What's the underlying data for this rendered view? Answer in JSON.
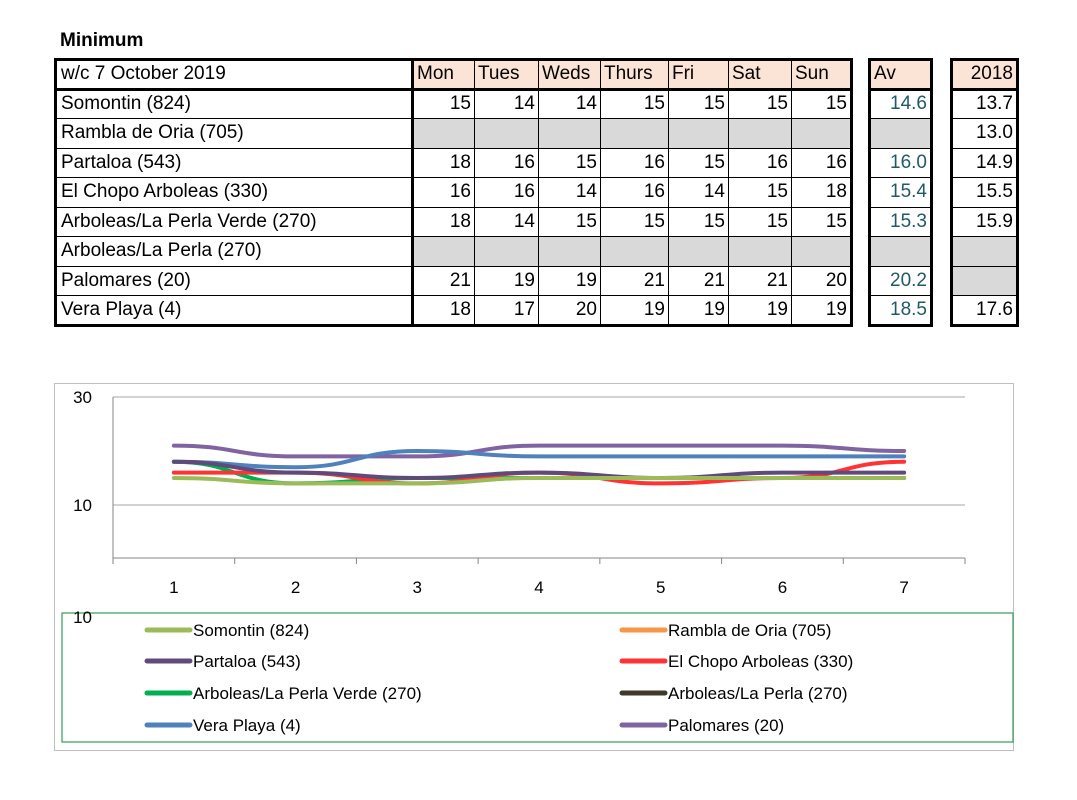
{
  "heading": "Minimum",
  "table": {
    "week_label": "w/c 7 October 2019",
    "days": [
      "Mon",
      "Tues",
      "Weds",
      "Thurs",
      "Fri",
      "Sat",
      "Sun"
    ],
    "avg_header": "Av",
    "prev_header": "2018",
    "rows": [
      {
        "name": "Somontin (824)",
        "values": [
          "15",
          "14",
          "14",
          "15",
          "15",
          "15",
          "15"
        ],
        "avg": "14.6",
        "prev": "13.7"
      },
      {
        "name": "Rambla de Oria (705)",
        "values": [
          "",
          "",
          "",
          "",
          "",
          "",
          ""
        ],
        "avg": "",
        "prev": "13.0"
      },
      {
        "name": "Partaloa (543)",
        "values": [
          "18",
          "16",
          "15",
          "16",
          "15",
          "16",
          "16"
        ],
        "avg": "16.0",
        "prev": "14.9"
      },
      {
        "name": "El Chopo Arboleas (330)",
        "values": [
          "16",
          "16",
          "14",
          "16",
          "14",
          "15",
          "18"
        ],
        "avg": "15.4",
        "prev": "15.5"
      },
      {
        "name": "Arboleas/La Perla Verde (270)",
        "values": [
          "18",
          "14",
          "15",
          "15",
          "15",
          "15",
          "15"
        ],
        "avg": "15.3",
        "prev": "15.9"
      },
      {
        "name": "Arboleas/La Perla (270)",
        "values": [
          "",
          "",
          "",
          "",
          "",
          "",
          ""
        ],
        "avg": "",
        "prev": ""
      },
      {
        "name": "Palomares (20)",
        "values": [
          "21",
          "19",
          "19",
          "21",
          "21",
          "21",
          "20"
        ],
        "avg": "20.2",
        "prev": ""
      },
      {
        "name": "Vera Playa (4)",
        "values": [
          "18",
          "17",
          "20",
          "19",
          "19",
          "19",
          "19"
        ],
        "avg": "18.5",
        "prev": "17.6"
      }
    ]
  },
  "chart_data": {
    "type": "line",
    "x": [
      1,
      2,
      3,
      4,
      5,
      6,
      7
    ],
    "ylim": [
      10,
      30
    ],
    "y_ticks": [
      "30",
      "10"
    ],
    "x_tick_labels": [
      "1",
      "2",
      "3",
      "4",
      "5",
      "6",
      "7"
    ],
    "stray_axis_label": "10",
    "grid": true,
    "legend_position": "bottom",
    "series": [
      {
        "name": "Somontin (824)",
        "color": "#9bbb59",
        "values": [
          15,
          14,
          14,
          15,
          15,
          15,
          15
        ]
      },
      {
        "name": "Rambla de Oria (705)",
        "color": "#f79646",
        "values": [
          null,
          null,
          null,
          null,
          null,
          null,
          null
        ]
      },
      {
        "name": "Partaloa (543)",
        "color": "#604a7b",
        "values": [
          18,
          16,
          15,
          16,
          15,
          16,
          16
        ]
      },
      {
        "name": "El Chopo Arboleas (330)",
        "color": "#ff3333",
        "values": [
          16,
          16,
          14,
          16,
          14,
          15,
          18
        ]
      },
      {
        "name": "Arboleas/La Perla Verde (270)",
        "color": "#00b050",
        "values": [
          18,
          14,
          15,
          15,
          15,
          15,
          15
        ]
      },
      {
        "name": "Arboleas/La Perla (270)",
        "color": "#403a2a",
        "values": [
          null,
          null,
          null,
          null,
          null,
          null,
          null
        ]
      },
      {
        "name": "Vera Playa (4)",
        "color": "#4f81bd",
        "values": [
          18,
          17,
          20,
          19,
          19,
          19,
          19
        ]
      },
      {
        "name": "Palomares (20)",
        "color": "#8064a2",
        "values": [
          21,
          19,
          19,
          21,
          21,
          21,
          20
        ]
      }
    ]
  }
}
